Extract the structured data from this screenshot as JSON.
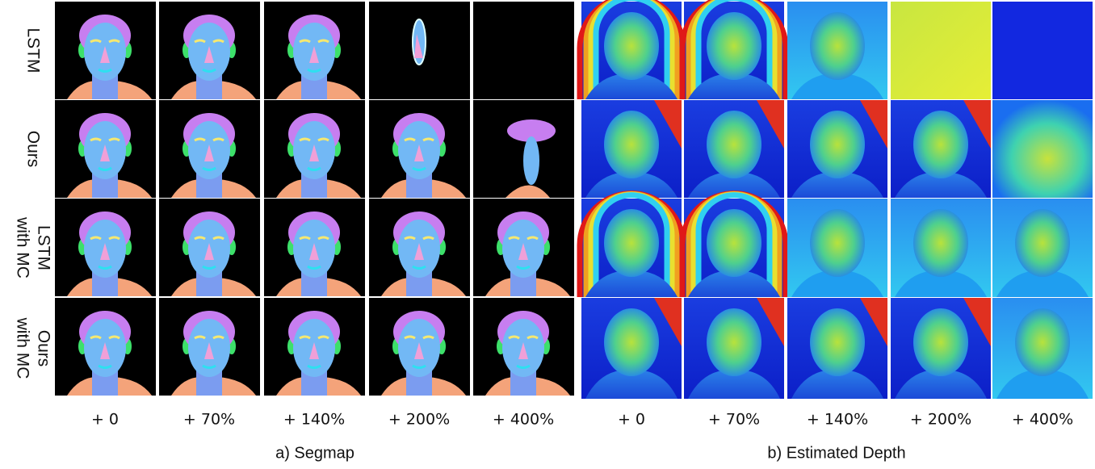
{
  "rows": [
    {
      "lines": [
        "LSTM"
      ]
    },
    {
      "lines": [
        "Ours"
      ]
    },
    {
      "lines": [
        "LSTM",
        "with MC"
      ]
    },
    {
      "lines": [
        "Ours",
        "with MC"
      ]
    }
  ],
  "panels": [
    {
      "caption": "a) Segmap",
      "columns": [
        "+ 0",
        "+ 70%",
        "+ 140%",
        "+ 200%",
        "+ 400%"
      ]
    },
    {
      "caption": "b) Estimated Depth",
      "columns": [
        "+ 0",
        "+ 70%",
        "+ 140%",
        "+ 200%",
        "+ 400%"
      ]
    }
  ]
}
